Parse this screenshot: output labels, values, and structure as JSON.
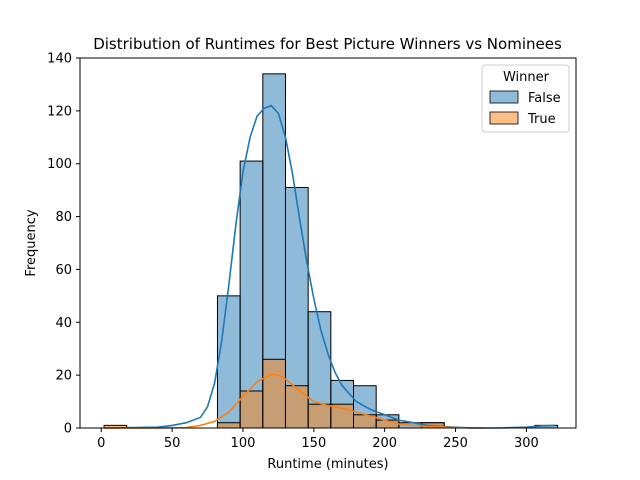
{
  "chart_data": {
    "type": "bar",
    "title": "Distribution of Runtimes for Best Picture Winners vs Nominees",
    "xlabel": "Runtime (minutes)",
    "ylabel": "Frequency",
    "xlim": [
      -15,
      335
    ],
    "ylim": [
      0,
      140
    ],
    "xticks": [
      0,
      50,
      100,
      150,
      200,
      250,
      300
    ],
    "yticks": [
      0,
      20,
      40,
      60,
      80,
      100,
      120,
      140
    ],
    "bin_edges": [
      2,
      18,
      34,
      50,
      66,
      82,
      98,
      114,
      130,
      146,
      162,
      178,
      194,
      210,
      226,
      242,
      258,
      274,
      290,
      306,
      322
    ],
    "grid": false,
    "legend": {
      "title": "Winner",
      "position": "top-right"
    },
    "series": [
      {
        "name": "False",
        "color": "#1f77b4",
        "counts": [
          0,
          0,
          0,
          0,
          0,
          50,
          101,
          134,
          91,
          44,
          18,
          16,
          5,
          2,
          2,
          0,
          0,
          0,
          0,
          1
        ],
        "kde_x": [
          2,
          40,
          50,
          60,
          70,
          75,
          80,
          85,
          90,
          95,
          100,
          105,
          110,
          115,
          120,
          125,
          130,
          135,
          140,
          145,
          150,
          155,
          160,
          165,
          170,
          175,
          180,
          190,
          200,
          210,
          220,
          230,
          240,
          250,
          260,
          280,
          300,
          310,
          320
        ],
        "kde_y": [
          0,
          0.3,
          1,
          2,
          4,
          8,
          17,
          33,
          54,
          77,
          97,
          110,
          118,
          121,
          122,
          119,
          110,
          96,
          79,
          63,
          49,
          37,
          28,
          21,
          16,
          13,
          10,
          7,
          5,
          3,
          2,
          1,
          0.6,
          0.3,
          0,
          0,
          0.3,
          0.8,
          1
        ]
      },
      {
        "name": "True",
        "color": "#ff7f0e",
        "counts": [
          1,
          0,
          0,
          0,
          0,
          2,
          14,
          26,
          16,
          9,
          9,
          5,
          3,
          0,
          2,
          0,
          0,
          0,
          0,
          0
        ],
        "kde_x": [
          2,
          20,
          40,
          60,
          70,
          80,
          90,
          100,
          110,
          120,
          125,
          130,
          140,
          150,
          160,
          170,
          180,
          190,
          200,
          210,
          220,
          230,
          240,
          250,
          260,
          270
        ],
        "kde_y": [
          0,
          0,
          0,
          0.2,
          1,
          2.5,
          6,
          12,
          17.5,
          20.3,
          20,
          18.5,
          14,
          10,
          8.5,
          7.5,
          6,
          4.5,
          3,
          1.5,
          1,
          0.6,
          0.4,
          0.2,
          0.1,
          0
        ]
      }
    ]
  }
}
